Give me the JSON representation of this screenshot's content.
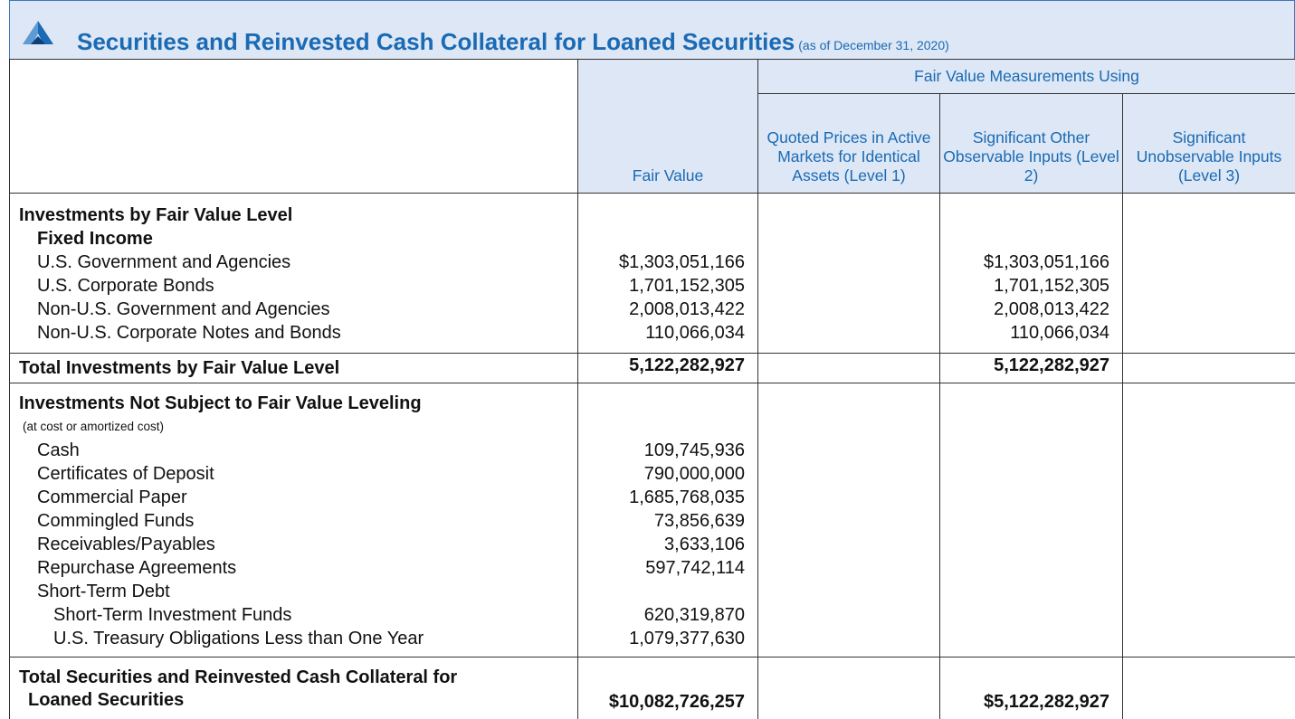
{
  "header": {
    "title": "Securities and Reinvested Cash Collateral for Loaned Securities",
    "subtitle": "(as of December 31, 2020)"
  },
  "table": {
    "group_header": "Fair Value Measurements Using",
    "columns": [
      "Fair Value",
      "Quoted Prices in Active Markets for Identical Assets (Level 1)",
      "Significant Other Observable Inputs (Level 2)",
      "Significant Unobservable Inputs (Level 3)"
    ],
    "blocks": [
      {
        "heading": "Investments by Fair Value Level",
        "groups": [
          {
            "name": "Fixed Income",
            "items": [
              {
                "label": "U.S. Government and Agencies",
                "fair_value": "$1,303,051,166",
                "level_2": "$1,303,051,166"
              },
              {
                "label": "U.S. Corporate Bonds",
                "fair_value": "1,701,152,305",
                "level_2": "1,701,152,305"
              },
              {
                "label": "Non-U.S. Government and Agencies",
                "fair_value": "2,008,013,422",
                "level_2": "2,008,013,422"
              },
              {
                "label": "Non-U.S. Corporate Notes and Bonds",
                "fair_value": "110,066,034",
                "level_2": "110,066,034"
              }
            ]
          }
        ]
      },
      {
        "total": {
          "label": "Total Investments by Fair Value Level",
          "fair_value": "5,122,282,927",
          "level_2": "5,122,282,927"
        }
      },
      {
        "heading": "Investments Not Subject to Fair Value Leveling",
        "note": "(at cost or amortized cost)",
        "items": [
          {
            "label": "Cash",
            "fair_value": "109,745,936"
          },
          {
            "label": "Certificates of Deposit",
            "fair_value": "790,000,000"
          },
          {
            "label": "Commercial Paper",
            "fair_value": "1,685,768,035"
          },
          {
            "label": "Commingled Funds",
            "fair_value": "73,856,639"
          },
          {
            "label": "Receivables/Payables",
            "fair_value": "3,633,106"
          },
          {
            "label": "Repurchase Agreements",
            "fair_value": "597,742,114"
          },
          {
            "label": "Short-Term Debt",
            "items": [
              {
                "label": "Short-Term Investment Funds",
                "fair_value": "620,319,870"
              },
              {
                "label": "U.S. Treasury Obligations Less than One Year",
                "fair_value": "1,079,377,630"
              }
            ]
          }
        ]
      },
      {
        "total": {
          "label": "Total Securities and Reinvested Cash Collateral for Loaned Securities",
          "fair_value": "$10,082,726,257",
          "level_2": "$5,122,282,927"
        }
      }
    ]
  }
}
